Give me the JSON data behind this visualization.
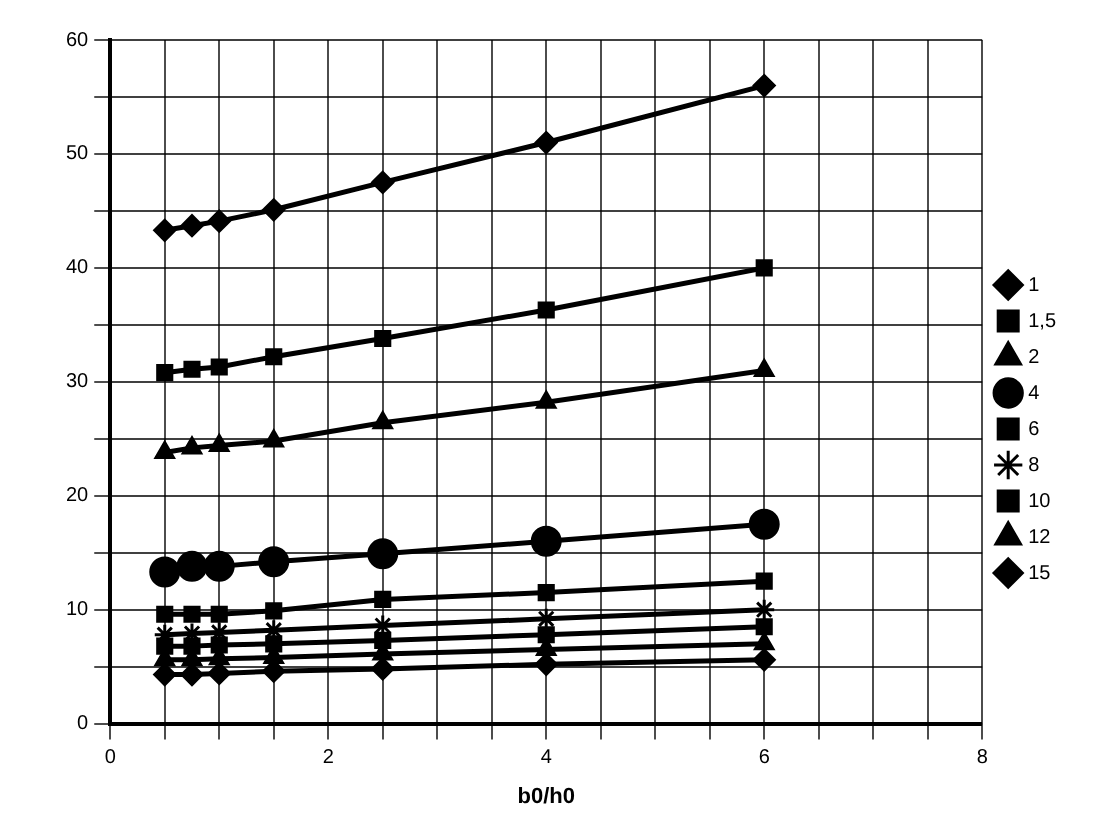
{
  "chart_data": {
    "type": "line",
    "xlabel": "b0/h0",
    "x": [
      0.5,
      0.75,
      1,
      1.5,
      2.5,
      4,
      6
    ],
    "xlim": [
      0,
      8
    ],
    "xticks": [
      0,
      {
        "value": 0.5,
        "label": null
      },
      {
        "value": 1,
        "label": null
      },
      {
        "value": 1.5,
        "label": null
      },
      2,
      {
        "value": 2.5,
        "label": null
      },
      {
        "value": 3,
        "label": null
      },
      {
        "value": 3.5,
        "label": null
      },
      4,
      {
        "value": 4.5,
        "label": null
      },
      {
        "value": 5,
        "label": null
      },
      {
        "value": 5.5,
        "label": null
      },
      6,
      {
        "value": 6.5,
        "label": null
      },
      {
        "value": 7,
        "label": null
      },
      {
        "value": 7.5,
        "label": null
      },
      8
    ],
    "ylim": [
      0,
      60
    ],
    "yticks": [
      0,
      {
        "value": 5,
        "label": null
      },
      10,
      {
        "value": 15,
        "label": null
      },
      20,
      {
        "value": 25,
        "label": null
      },
      30,
      {
        "value": 35,
        "label": null
      },
      40,
      {
        "value": 45,
        "label": null
      },
      50,
      {
        "value": 55,
        "label": null
      },
      60
    ],
    "grid": true,
    "legend": "right",
    "line_style": "solid",
    "series": [
      {
        "name": "1",
        "color": "#000000",
        "marker": "diamond",
        "values": [
          43.3,
          43.7,
          44.1,
          45.1,
          47.5,
          51,
          56
        ]
      },
      {
        "name": "1,5",
        "color": "#000000",
        "marker": "square",
        "values": [
          30.8,
          31.1,
          31.3,
          32.2,
          33.8,
          36.3,
          40
        ]
      },
      {
        "name": "2",
        "color": "#000000",
        "marker": "triangle",
        "values": [
          23.8,
          24.2,
          24.4,
          24.8,
          26.4,
          28.2,
          31
        ]
      },
      {
        "name": "4",
        "color": "#000000",
        "marker": "circle",
        "values": [
          13.3,
          13.8,
          13.8,
          14.2,
          14.9,
          16,
          17.5
        ]
      },
      {
        "name": "6",
        "color": "#000000",
        "marker": "square",
        "values": [
          9.6,
          9.6,
          9.6,
          9.9,
          10.9,
          11.5,
          12.5
        ]
      },
      {
        "name": "8",
        "color": "#000000",
        "marker": "cross",
        "values": [
          7.8,
          7.9,
          8,
          8.2,
          8.6,
          9.2,
          10
        ]
      },
      {
        "name": "10",
        "color": "#000000",
        "marker": "square",
        "values": [
          6.8,
          6.8,
          6.9,
          7,
          7.3,
          7.8,
          8.5
        ]
      },
      {
        "name": "12",
        "color": "#000000",
        "marker": "triangle",
        "values": [
          5.6,
          5.6,
          5.7,
          5.8,
          6.1,
          6.5,
          7
        ]
      },
      {
        "name": "15",
        "color": "#000000",
        "marker": "diamond",
        "values": [
          4.3,
          4.3,
          4.4,
          4.6,
          4.8,
          5.2,
          5.6
        ]
      }
    ]
  }
}
